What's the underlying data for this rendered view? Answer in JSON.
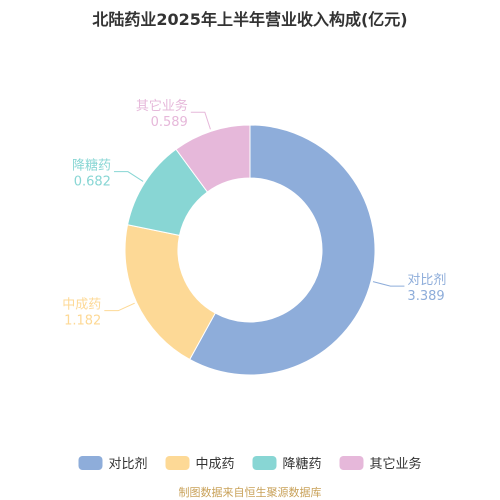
{
  "chart_data": {
    "type": "pie",
    "title": "北陆药业2025年上半年营业收入构成(亿元)",
    "categories": [
      "对比剂",
      "中成药",
      "降糖药",
      "其它业务"
    ],
    "values": [
      3.389,
      1.182,
      0.682,
      0.589
    ],
    "value_labels": [
      "3.389",
      "1.182",
      "0.682",
      "0.589"
    ],
    "colors": [
      "#8eadda",
      "#fdd996",
      "#88d6d4",
      "#e6b8da"
    ],
    "legend": {
      "placement": "bottom",
      "entries": [
        "对比剂",
        "中成药",
        "降糖药",
        "其它业务"
      ]
    },
    "donut": true
  },
  "source_text": "制图数据来自恒生聚源数据库"
}
